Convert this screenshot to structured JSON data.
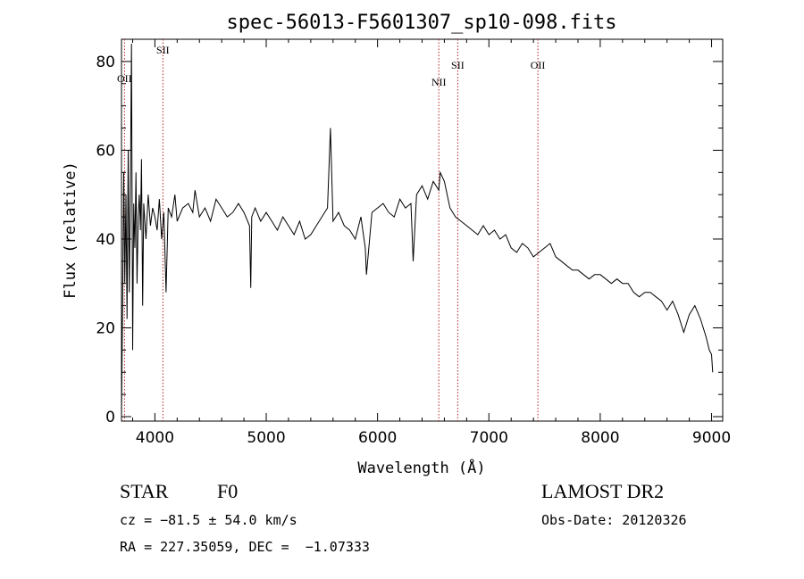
{
  "chart_data": {
    "type": "line",
    "title": "spec-56013-F5601307_sp10-098.fits",
    "xlabel": "Wavelength (Å)",
    "ylabel": "Flux (relative)",
    "xlim": [
      3700,
      9100
    ],
    "ylim": [
      -1,
      85
    ],
    "x_ticks": [
      4000,
      5000,
      6000,
      7000,
      8000,
      9000
    ],
    "y_ticks": [
      0,
      20,
      40,
      60,
      80
    ],
    "grid": false,
    "series": [
      {
        "color": "#000000",
        "x": [
          3700,
          3710,
          3720,
          3730,
          3740,
          3750,
          3760,
          3770,
          3780,
          3790,
          3800,
          3810,
          3820,
          3830,
          3840,
          3850,
          3860,
          3870,
          3880,
          3890,
          3900,
          3920,
          3940,
          3960,
          3980,
          4000,
          4020,
          4040,
          4060,
          4080,
          4100,
          4120,
          4150,
          4180,
          4200,
          4250,
          4300,
          4340,
          4360,
          4400,
          4450,
          4500,
          4550,
          4600,
          4650,
          4700,
          4750,
          4800,
          4850,
          4861,
          4870,
          4900,
          4950,
          5000,
          5050,
          5100,
          5150,
          5200,
          5250,
          5300,
          5350,
          5400,
          5450,
          5500,
          5550,
          5577,
          5600,
          5650,
          5700,
          5750,
          5800,
          5850,
          5890,
          5900,
          5950,
          6000,
          6050,
          6100,
          6150,
          6200,
          6250,
          6300,
          6320,
          6350,
          6400,
          6450,
          6500,
          6550,
          6563,
          6600,
          6650,
          6700,
          6750,
          6800,
          6850,
          6900,
          6950,
          7000,
          7050,
          7100,
          7150,
          7200,
          7250,
          7300,
          7350,
          7400,
          7450,
          7500,
          7550,
          7600,
          7650,
          7700,
          7750,
          7800,
          7850,
          7900,
          7950,
          8000,
          8050,
          8100,
          8150,
          8200,
          8250,
          8300,
          8350,
          8400,
          8450,
          8500,
          8550,
          8600,
          8650,
          8700,
          8750,
          8800,
          8850,
          8900,
          8950,
          8980,
          9000,
          9010
        ],
        "y": [
          0,
          25,
          55,
          30,
          50,
          22,
          60,
          28,
          52,
          84,
          15,
          48,
          38,
          55,
          30,
          45,
          50,
          42,
          58,
          25,
          48,
          40,
          50,
          43,
          47,
          45,
          42,
          49,
          40,
          46,
          28,
          47,
          45,
          50,
          44,
          47,
          48,
          46,
          51,
          45,
          47,
          44,
          49,
          47,
          45,
          46,
          48,
          46,
          43,
          29,
          45,
          47,
          44,
          46,
          44,
          42,
          45,
          43,
          41,
          44,
          40,
          41,
          43,
          45,
          47,
          65,
          44,
          46,
          43,
          42,
          40,
          45,
          38,
          32,
          46,
          47,
          48,
          46,
          45,
          49,
          47,
          48,
          35,
          50,
          52,
          49,
          53,
          51,
          55,
          53,
          47,
          45,
          44,
          43,
          42,
          41,
          43,
          41,
          42,
          40,
          41,
          38,
          37,
          39,
          38,
          36,
          37,
          38,
          39,
          36,
          35,
          34,
          33,
          33,
          32,
          31,
          32,
          32,
          31,
          30,
          31,
          30,
          30,
          28,
          27,
          28,
          28,
          27,
          26,
          24,
          26,
          23,
          19,
          23,
          25,
          22,
          18,
          15,
          14,
          10
        ]
      }
    ],
    "lines": [
      {
        "label": "OII",
        "x": 3727
      },
      {
        "label": "SII",
        "x": 4072
      },
      {
        "label": "NII",
        "x": 6550
      },
      {
        "label": "SII",
        "x": 6720
      },
      {
        "label": "OII",
        "x": 7440
      }
    ]
  },
  "info": {
    "object_class": "STAR",
    "subclass": "F0",
    "survey": "LAMOST DR2",
    "cz": "cz = −81.5 ± 54.0 km/s",
    "obs_date": "Obs-Date: 20120326",
    "coords": "RA = 227.35059, DEC =  −1.07333"
  }
}
